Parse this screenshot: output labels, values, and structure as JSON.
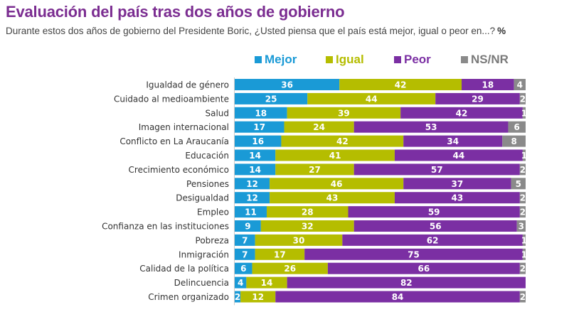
{
  "header": {
    "title": "Evaluación del país tras dos años de gobierno",
    "subtitle": "Durante estos dos años de gobierno del Presidente Boric, ¿Usted piensa que el país está mejor, igual o peor en...?",
    "unit": "%"
  },
  "colors": {
    "Mejor": "#1a9ad6",
    "Igual": "#b5bd00",
    "Peor": "#7b2fa3",
    "NS/NR": "#8a8a8a"
  },
  "chart_data": {
    "type": "bar",
    "orientation": "horizontal-stacked-100",
    "title": "Evaluación del país tras dos años de gobierno",
    "subtitle": "Durante estos dos años de gobierno del Presidente Boric, ¿Usted piensa que el país está mejor, igual o peor en...? %",
    "xlabel": "",
    "ylabel": "",
    "xlim": [
      0,
      100
    ],
    "grid": false,
    "legend": "top-center",
    "categories": [
      "Igualdad de género",
      "Cuidado al medioambiente",
      "Salud",
      "Imagen internacional",
      "Conflicto en La Araucanía",
      "Educación",
      "Crecimiento económico",
      "Pensiones",
      "Desigualdad",
      "Empleo",
      "Confianza en las instituciones",
      "Pobreza",
      "Inmigración",
      "Calidad de la política",
      "Delincuencia",
      "Crimen organizado"
    ],
    "series": [
      {
        "name": "Mejor",
        "values": [
          36,
          25,
          18,
          17,
          16,
          14,
          14,
          12,
          12,
          11,
          9,
          7,
          7,
          6,
          4,
          2
        ]
      },
      {
        "name": "Igual",
        "values": [
          42,
          44,
          39,
          24,
          42,
          41,
          27,
          46,
          43,
          28,
          32,
          30,
          17,
          26,
          14,
          12
        ]
      },
      {
        "name": "Peor",
        "values": [
          18,
          29,
          42,
          53,
          34,
          44,
          57,
          37,
          43,
          59,
          56,
          62,
          75,
          66,
          82,
          84
        ]
      },
      {
        "name": "NS/NR",
        "values": [
          4,
          2,
          1,
          6,
          8,
          1,
          2,
          5,
          2,
          2,
          3,
          1,
          1,
          2,
          0,
          2
        ]
      }
    ]
  }
}
